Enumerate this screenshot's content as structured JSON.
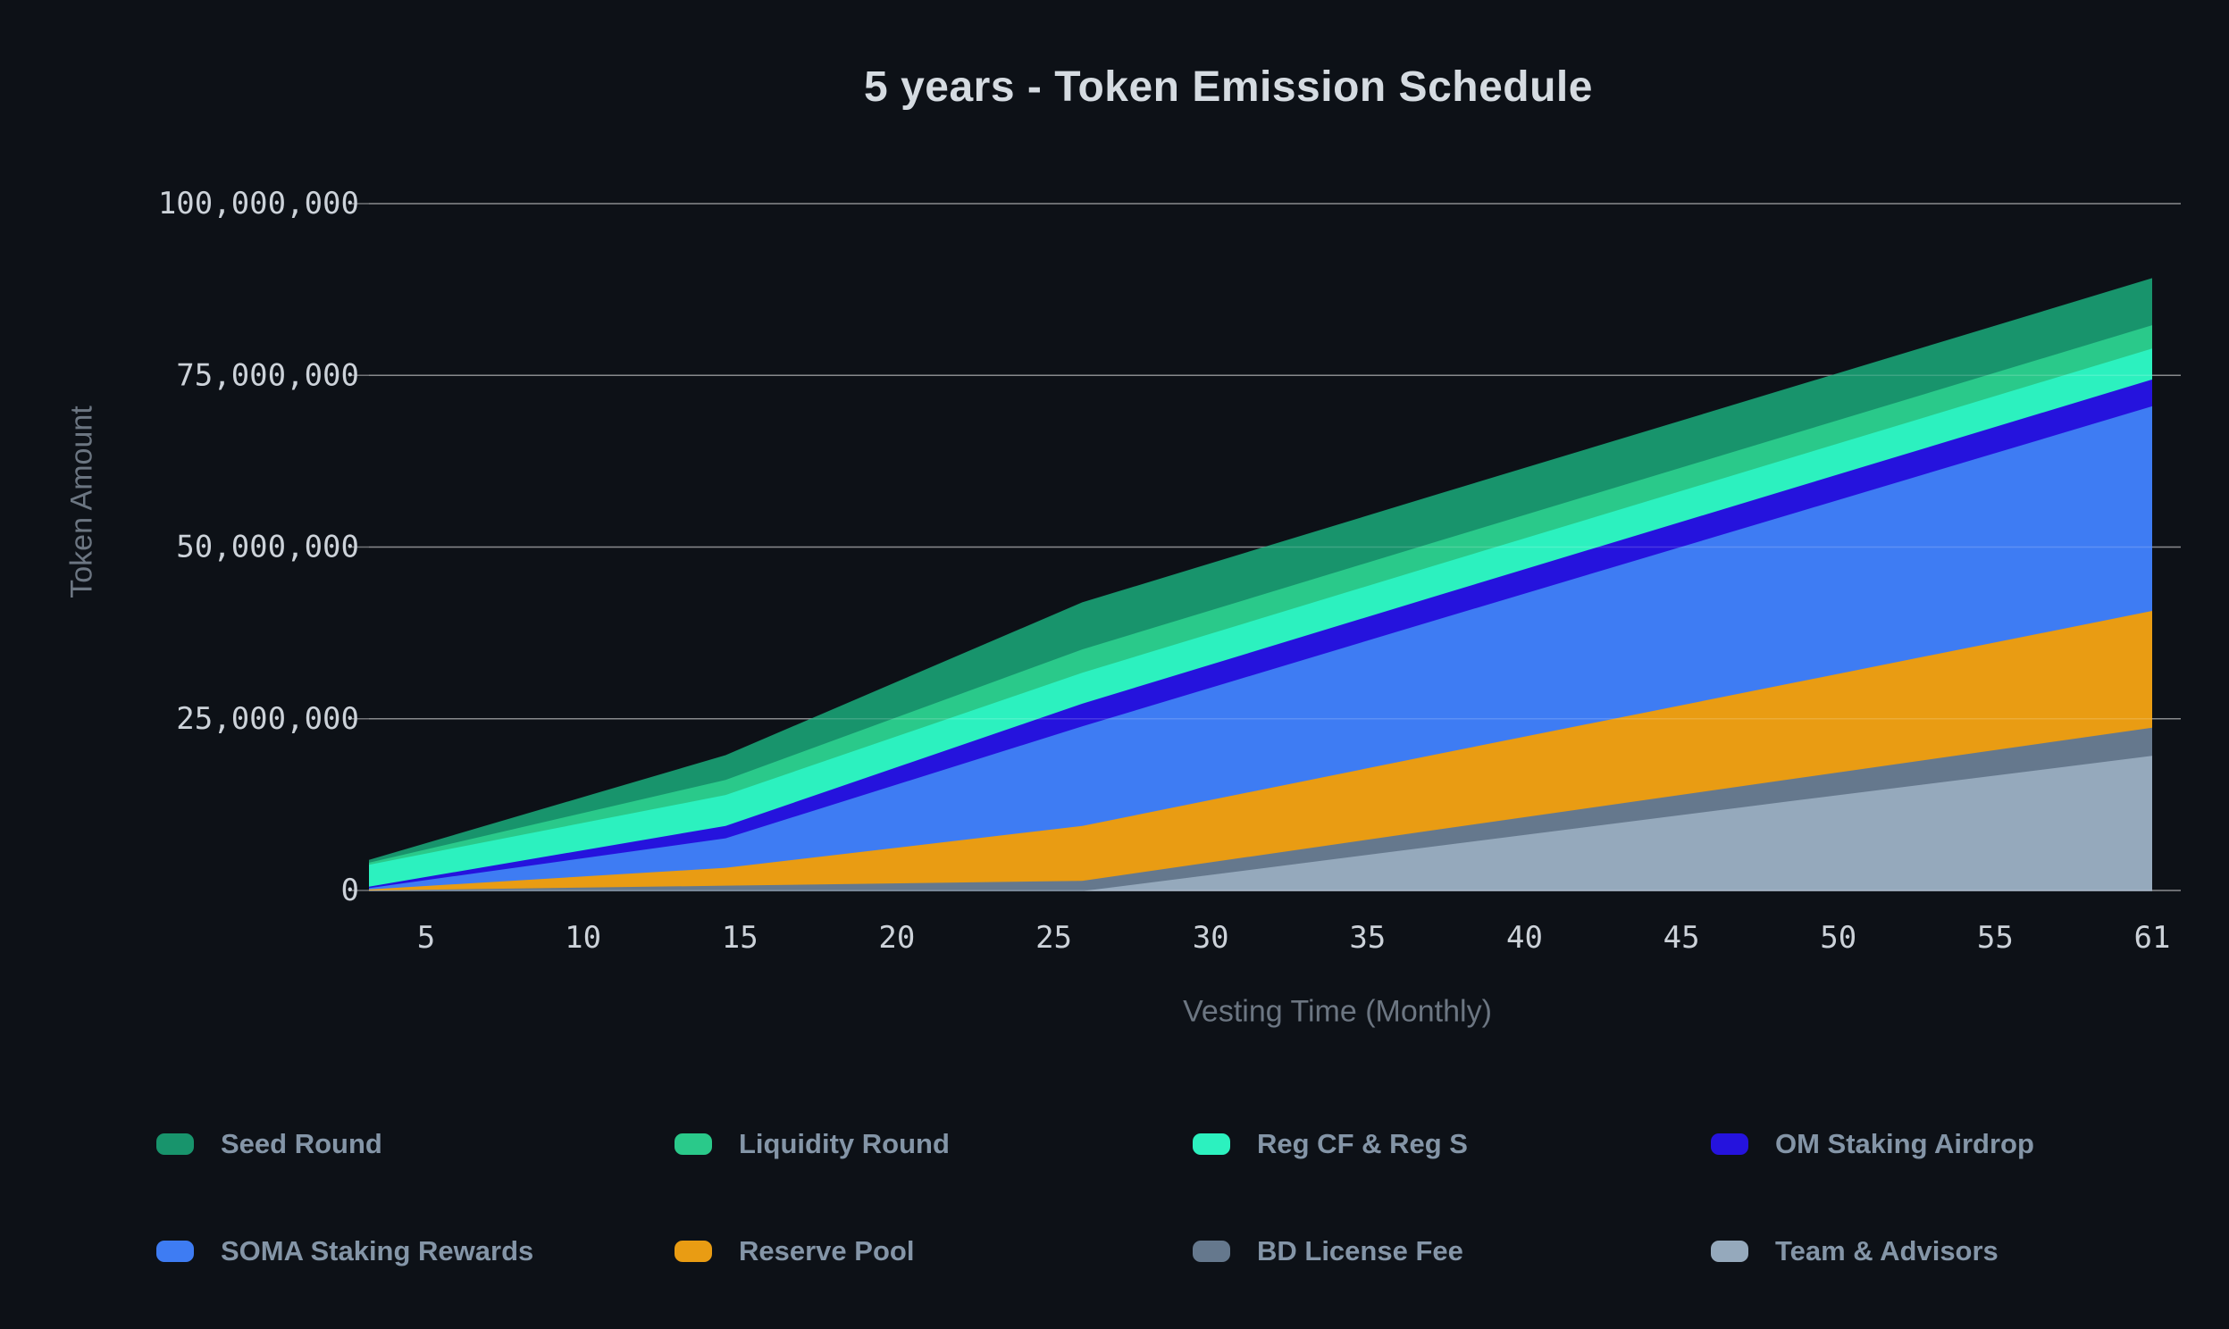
{
  "title": "5 years - Token Emission Schedule",
  "chart_data": {
    "type": "area",
    "stacked": true,
    "unit": "tokens",
    "title": "5 years - Token Emission Schedule",
    "xlabel": "Vesting Time (Monthly)",
    "ylabel": "Token Amount",
    "x_axis": {
      "label": "Vesting Time (Monthly)",
      "range": [
        1,
        61
      ],
      "ticks": [
        5,
        10,
        15,
        20,
        25,
        30,
        35,
        40,
        45,
        50,
        55,
        61
      ]
    },
    "y_axis": {
      "label": "Token Amount",
      "range": [
        0,
        100000000
      ],
      "grid": true,
      "ticks": [
        {
          "value": 0,
          "label": "0"
        },
        {
          "value": 25000000,
          "label": "25,000,000"
        },
        {
          "value": 50000000,
          "label": "50,000,000"
        },
        {
          "value": 75000000,
          "label": "75,000,000"
        },
        {
          "value": 100000000,
          "label": "100,000,000"
        }
      ]
    },
    "x": [
      1,
      13,
      25,
      37,
      49,
      61
    ],
    "series": [
      {
        "name": "Seed Round",
        "color": "#18946C",
        "values": [
          300000,
          3500000,
          6750000,
          6750000,
          6750000,
          6750000
        ]
      },
      {
        "name": "Liquidity Round",
        "color": "#2AC98A",
        "values": [
          300000,
          2200000,
          3400000,
          3400000,
          3400000,
          3400000
        ]
      },
      {
        "name": "Reg CF & Reg S",
        "color": "#2CF1BF",
        "values": [
          3200000,
          4500000,
          4500000,
          4500000,
          4500000,
          4500000
        ]
      },
      {
        "name": "OM Staking Airdrop",
        "color": "#2513DD",
        "values": [
          200000,
          1800000,
          3300000,
          3500000,
          3700000,
          3900000
        ]
      },
      {
        "name": "SOMA Staking Rewards",
        "color": "#3E7CF3",
        "values": [
          200000,
          4300000,
          14500000,
          19600000,
          24700000,
          29800000
        ]
      },
      {
        "name": "Reserve Pool",
        "color": "#E99C13",
        "values": [
          150000,
          2600000,
          8000000,
          11000000,
          14000000,
          17000000
        ]
      },
      {
        "name": "BD License Fee",
        "color": "#65788D",
        "values": [
          100000,
          800000,
          1500000,
          2400000,
          3200000,
          4100000
        ]
      },
      {
        "name": "Team & Advisors",
        "color": "#95A9BC",
        "values": [
          0,
          0,
          0,
          6600000,
          13200000,
          19700000
        ]
      }
    ],
    "stack_order": "first series on top, last series at bottom",
    "legend_position": "bottom",
    "legend_rows": [
      [
        0,
        1,
        2,
        3
      ],
      [
        4,
        5,
        6,
        7
      ]
    ]
  },
  "colors": {
    "background": "#0d1117",
    "title_text": "#d5dbe1",
    "axis_tick_text": "#ccd2d9",
    "axis_name_text": "#6c7682",
    "legend_text": "#8495a7",
    "gridline": "#ffffff"
  }
}
